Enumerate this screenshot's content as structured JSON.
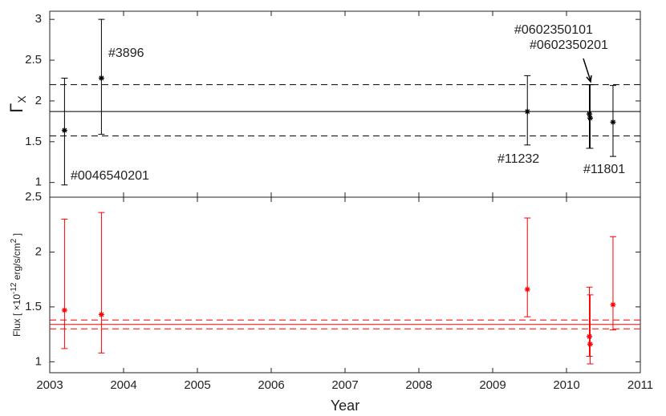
{
  "chart_data": [
    {
      "type": "errorbar",
      "color": "#000000",
      "ylabel": "Γ",
      "ylabel_sub": "X",
      "xlim": [
        2003,
        2011
      ],
      "xticks": [
        2003,
        2004,
        2005,
        2006,
        2007,
        2008,
        2009,
        2010,
        2011
      ],
      "ylim": [
        0.82,
        3.1
      ],
      "yticks": [
        1,
        1.5,
        2,
        2.5,
        3
      ],
      "x": [
        2003.2,
        2003.7,
        2009.47,
        2010.31,
        2010.32,
        2010.63
      ],
      "values": [
        1.64,
        2.28,
        1.87,
        1.84,
        1.79,
        1.74
      ],
      "lower": [
        0.97,
        1.59,
        1.46,
        1.42,
        1.42,
        1.32
      ],
      "upper": [
        2.28,
        3.0,
        2.31,
        2.2,
        2.2,
        2.19
      ],
      "hlines": [
        {
          "value": 1.87,
          "style": "solid"
        },
        {
          "value": 2.2,
          "style": "dashed"
        },
        {
          "value": 1.57,
          "style": "dashed"
        }
      ],
      "annotations": [
        "#0046540201",
        "#3896",
        "#11232",
        "#0602350101",
        "#0602350201",
        "#11801"
      ]
    },
    {
      "type": "errorbar",
      "color": "#ff0000",
      "ylabel": [
        "Flux [ ×10",
        "-12",
        " erg/s/cm",
        "2",
        " ]"
      ],
      "xlabel": "Year",
      "xlim": [
        2003,
        2011
      ],
      "xticks": [
        2003,
        2004,
        2005,
        2006,
        2007,
        2008,
        2009,
        2010,
        2011
      ],
      "ylim": [
        0.9,
        2.5
      ],
      "yticks": [
        1,
        1.5,
        2,
        2.5
      ],
      "x": [
        2003.2,
        2003.7,
        2009.47,
        2010.31,
        2010.32,
        2010.63
      ],
      "values": [
        1.47,
        1.43,
        1.66,
        1.23,
        1.16,
        1.52
      ],
      "lower": [
        1.12,
        1.08,
        1.41,
        1.05,
        0.98,
        1.29
      ],
      "upper": [
        2.3,
        2.36,
        2.31,
        1.68,
        1.61,
        2.14
      ],
      "hlines": [
        {
          "value": 1.34,
          "style": "solid"
        },
        {
          "value": 1.38,
          "style": "dashed"
        },
        {
          "value": 1.3,
          "style": "dashed"
        }
      ]
    }
  ]
}
